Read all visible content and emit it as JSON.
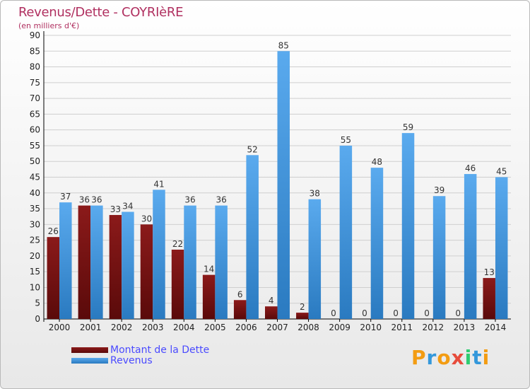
{
  "title": "Revenus/Dette - COYRIèRE",
  "subtitle": "(en milliers d'€)",
  "logo": {
    "text": "Proxiti",
    "colors": [
      "#f39c12",
      "#3498db",
      "#f39c12",
      "#e74c3c",
      "#2ecc71",
      "#3498db",
      "#f39c12"
    ]
  },
  "legend": {
    "debt_label": "Montant de la Dette",
    "revenue_label": "Revenus"
  },
  "colors": {
    "debt": "#8b1a1a",
    "debt_dark": "#5a0a0a",
    "revenue": "#5aaaee",
    "revenue_dark": "#2a7ac0",
    "grid": "#cfcfcf",
    "axis_text": "#222222",
    "label_text": "#333333"
  },
  "chart_data": {
    "type": "bar",
    "title": "Revenus/Dette - COYRIèRE",
    "subtitle": "(en milliers d'€)",
    "categories": [
      "2000",
      "2001",
      "2002",
      "2003",
      "2004",
      "2005",
      "2006",
      "2007",
      "2008",
      "2009",
      "2010",
      "2011",
      "2012",
      "2013",
      "2014"
    ],
    "series": [
      {
        "name": "Montant de la Dette",
        "values": [
          26,
          36,
          33,
          30,
          22,
          14,
          6,
          4,
          2,
          0,
          0,
          0,
          0,
          0,
          13
        ]
      },
      {
        "name": "Revenus",
        "values": [
          37,
          36,
          34,
          41,
          36,
          36,
          52,
          85,
          38,
          55,
          48,
          59,
          39,
          46,
          45
        ]
      }
    ],
    "ylim": [
      0,
      90
    ],
    "yticks": [
      0,
      5,
      10,
      15,
      20,
      25,
      30,
      35,
      40,
      45,
      50,
      55,
      60,
      65,
      70,
      75,
      80,
      85,
      90
    ],
    "grid": true,
    "legend_position": "bottom-left"
  }
}
